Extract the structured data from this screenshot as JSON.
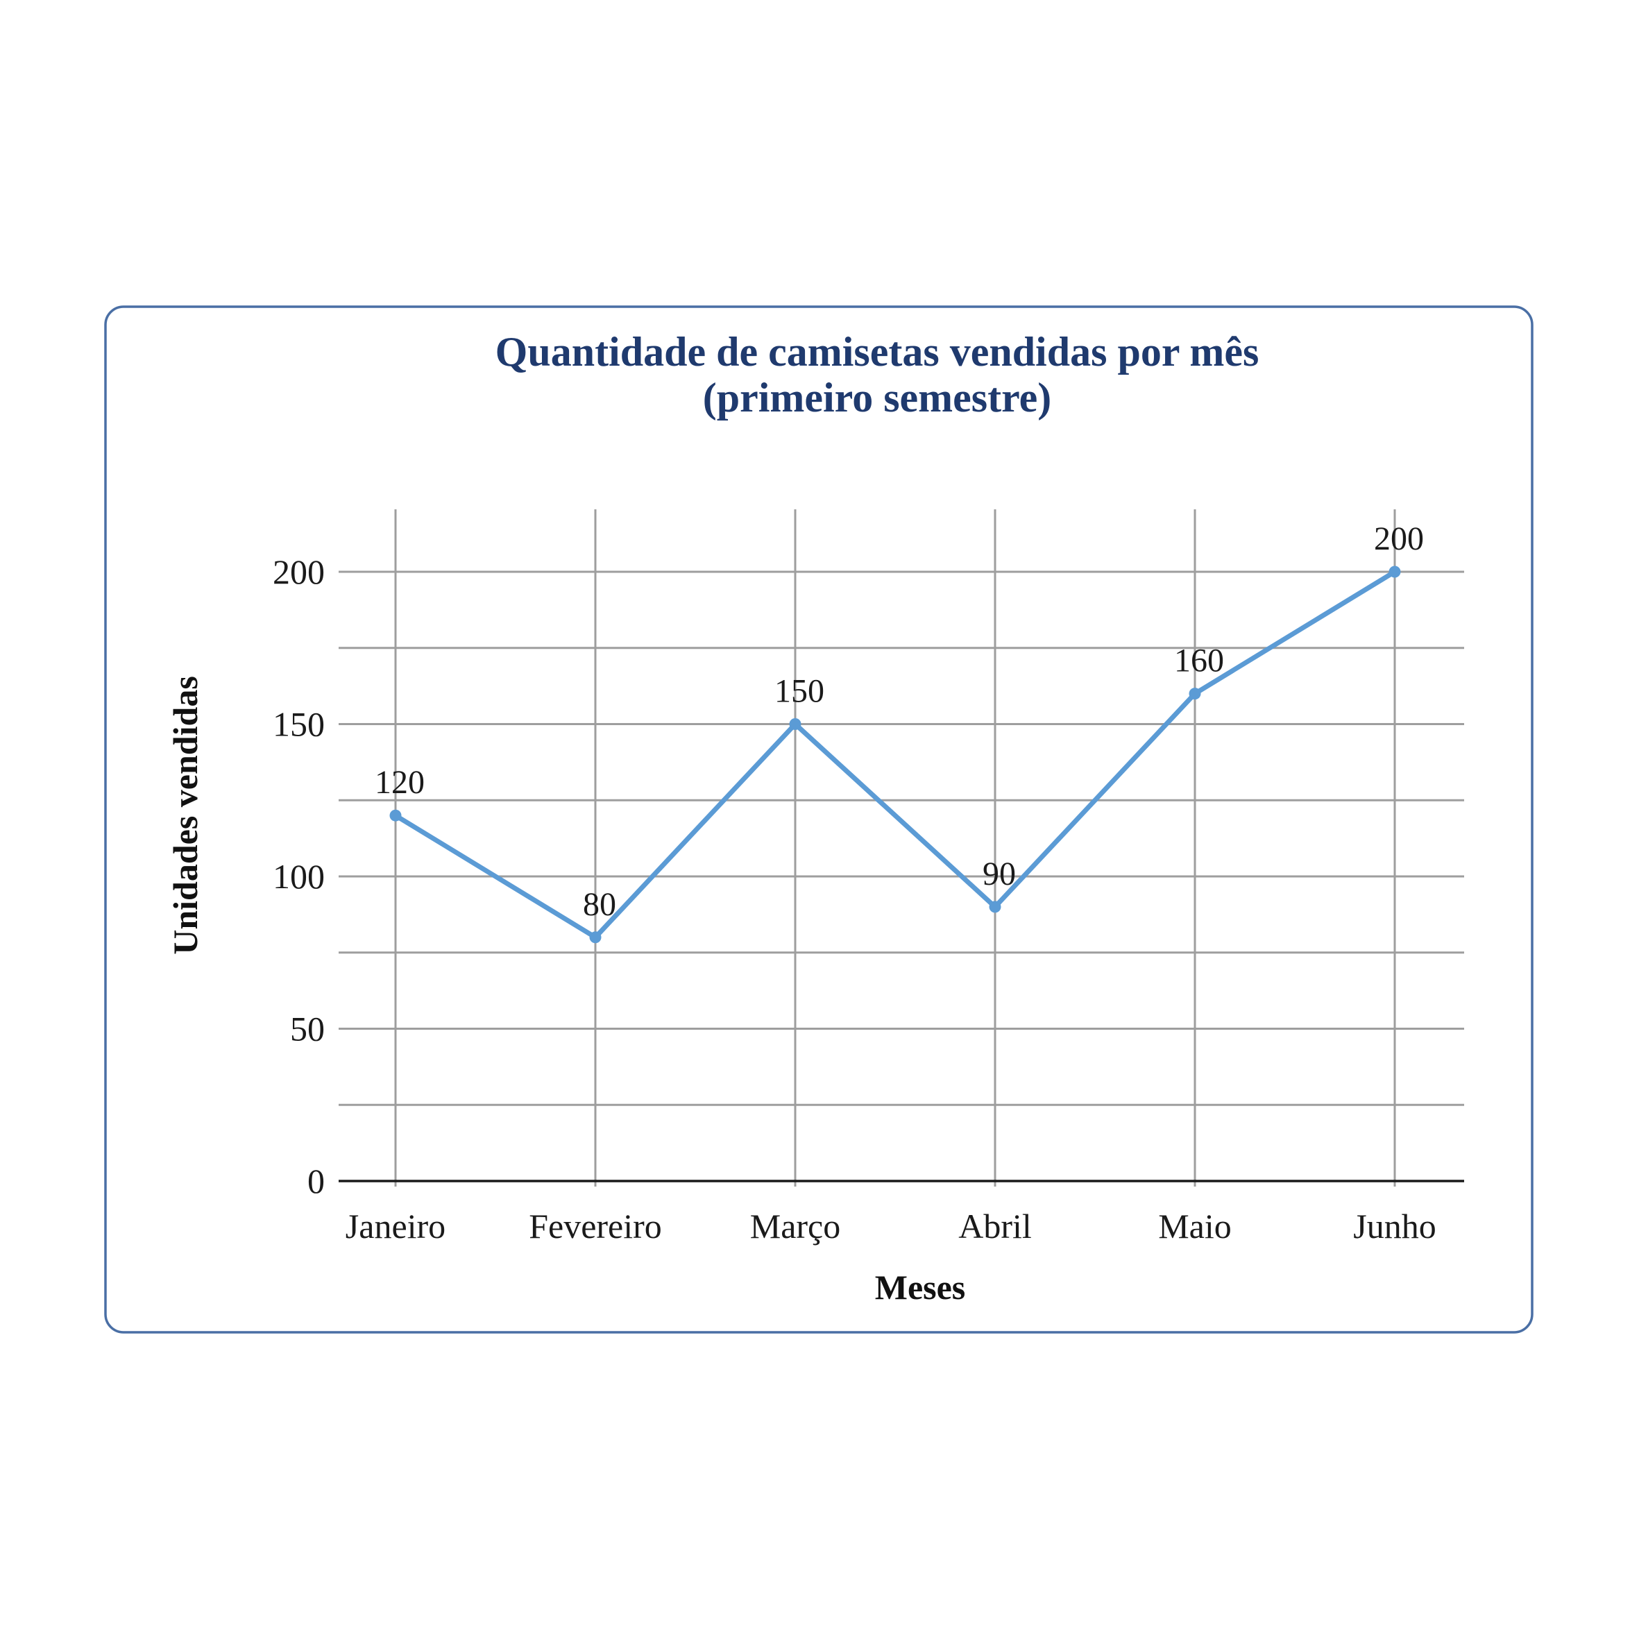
{
  "colors": {
    "frame": "#4a6fa5",
    "title": "#1f3a6e",
    "series": "#5b9bd5",
    "grid": "#9e9e9e",
    "baseline": "#1a1a1a"
  },
  "chart_data": {
    "type": "line",
    "title_lines": [
      "Quantidade de camisetas vendidas por mês",
      "(primeiro semestre)"
    ],
    "xlabel": "Meses",
    "ylabel": "Unidades vendidas",
    "categories": [
      "Janeiro",
      "Fevereiro",
      "Março",
      "Abril",
      "Maio",
      "Junho"
    ],
    "series": [
      {
        "values": [
          120,
          80,
          150,
          90,
          160,
          200
        ],
        "data_labels": [
          "120",
          "80",
          "150",
          "90",
          "160",
          "200"
        ]
      }
    ],
    "ylim": [
      0,
      200
    ],
    "y_ticks": [
      0,
      50,
      100,
      150,
      200
    ],
    "y_tick_labels": [
      "0",
      "50",
      "100",
      "150",
      "200"
    ],
    "y_minor_gridlines": [
      25,
      75,
      125,
      175
    ],
    "grid": true,
    "legend": "none"
  }
}
